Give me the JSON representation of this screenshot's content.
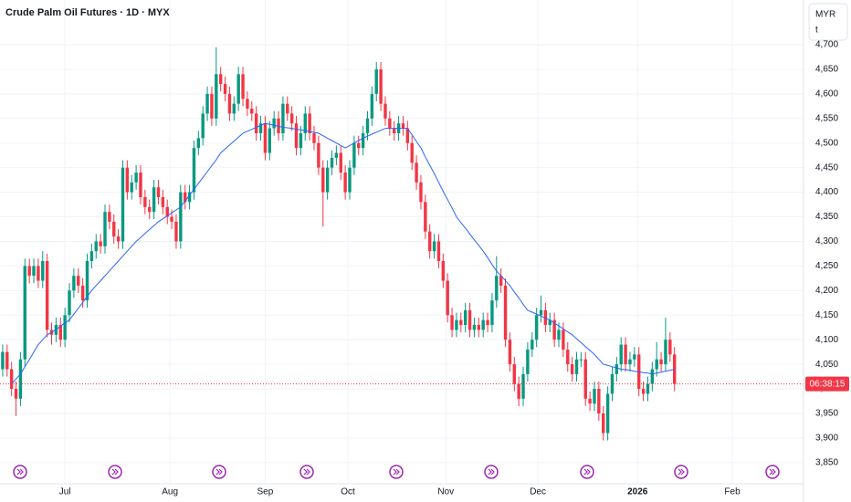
{
  "chart_data": {
    "type": "candlestick",
    "title": "Crude Palm Oil Futures · 1D · MYX",
    "currency": "MYR",
    "unit": "t",
    "countdown": "06:38:15",
    "up_color": "#089981",
    "down_color": "#f23645",
    "xlim": [
      -0.6,
      180
    ],
    "xticks": [
      {
        "value": 14,
        "label": "Jul"
      },
      {
        "value": 37.6,
        "label": "Aug"
      },
      {
        "value": 59,
        "label": "Sep"
      },
      {
        "value": 77.6,
        "label": "Oct"
      },
      {
        "value": 99.6,
        "label": "Nov"
      },
      {
        "value": 120.3,
        "label": "Dec"
      },
      {
        "value": 142.7,
        "label": "2026"
      },
      {
        "value": 164,
        "label": "Feb"
      }
    ],
    "ylim": [
      3807,
      4791
    ],
    "yticks": [
      {
        "value": 3850,
        "label": "3,850"
      },
      {
        "value": 3900,
        "label": "3,900"
      },
      {
        "value": 3950,
        "label": "3,950"
      },
      {
        "value": 4000,
        "label": "4,000"
      },
      {
        "value": 4050,
        "label": "4,050"
      },
      {
        "value": 4100,
        "label": "4,100"
      },
      {
        "value": 4150,
        "label": "4,150"
      },
      {
        "value": 4200,
        "label": "4,200"
      },
      {
        "value": 4250,
        "label": "4,250"
      },
      {
        "value": 4300,
        "label": "4,300"
      },
      {
        "value": 4350,
        "label": "4,350"
      },
      {
        "value": 4400,
        "label": "4,400"
      },
      {
        "value": 4450,
        "label": "4,450"
      },
      {
        "value": 4500,
        "label": "4,500"
      },
      {
        "value": 4550,
        "label": "4,550"
      },
      {
        "value": 4600,
        "label": "4,600"
      },
      {
        "value": 4650,
        "label": "4,650"
      },
      {
        "value": 4700,
        "label": "4,700"
      }
    ],
    "open": [
      4040,
      4075,
      4040,
      4000,
      3980,
      4060,
      4250,
      4230,
      4250,
      4220,
      4260,
      4120,
      4110,
      4130,
      4100,
      4150,
      4200,
      4230,
      4210,
      4180,
      4260,
      4280,
      4300,
      4290,
      4360,
      4340,
      4310,
      4300,
      4450,
      4400,
      4420,
      4440,
      4390,
      4370,
      4360,
      4410,
      4390,
      4370,
      4350,
      4340,
      4300,
      4400,
      4380,
      4400,
      4490,
      4510,
      4560,
      4600,
      4550,
      4640,
      4620,
      4600,
      4560,
      4580,
      4640,
      4590,
      4570,
      4560,
      4520,
      4540,
      4480,
      4530,
      4550,
      4520,
      4580,
      4560,
      4540,
      4490,
      4520,
      4560,
      4520,
      4500,
      4450,
      4400,
      4450,
      4470,
      4480,
      4440,
      4400,
      4450,
      4500,
      4490,
      4520,
      4550,
      4600,
      4650,
      4580,
      4550,
      4530,
      4520,
      4540,
      4530,
      4500,
      4460,
      4420,
      4380,
      4320,
      4280,
      4300,
      4260,
      4220,
      4150,
      4120,
      4140,
      4130,
      4160,
      4120,
      4130,
      4120,
      4140,
      4130,
      4180,
      4230,
      4210,
      4100,
      4050,
      4010,
      3980,
      4030,
      4080,
      4100,
      4150,
      4160,
      4130,
      4140,
      4100,
      4120,
      4080,
      4050,
      4030,
      4060,
      4060,
      3980,
      3970,
      4000,
      3950,
      3910,
      3990,
      4030,
      4050,
      4090,
      4050,
      4060,
      4070,
      4000,
      3990,
      4010,
      4040,
      4060,
      4050,
      4100,
      4070
    ],
    "high": [
      4090,
      4090,
      4055,
      4015,
      4075,
      4265,
      4265,
      4265,
      4265,
      4280,
      4275,
      4135,
      4145,
      4145,
      4165,
      4215,
      4245,
      4245,
      4225,
      4275,
      4295,
      4315,
      4315,
      4375,
      4375,
      4355,
      4325,
      4465,
      4465,
      4435,
      4455,
      4455,
      4405,
      4385,
      4425,
      4425,
      4405,
      4385,
      4365,
      4355,
      4415,
      4415,
      4415,
      4505,
      4525,
      4575,
      4615,
      4615,
      4695,
      4655,
      4635,
      4615,
      4595,
      4655,
      4655,
      4605,
      4585,
      4575,
      4555,
      4555,
      4545,
      4565,
      4565,
      4595,
      4595,
      4575,
      4555,
      4535,
      4575,
      4575,
      4535,
      4515,
      4465,
      4465,
      4485,
      4495,
      4495,
      4455,
      4465,
      4515,
      4515,
      4535,
      4565,
      4615,
      4665,
      4665,
      4595,
      4565,
      4545,
      4555,
      4555,
      4545,
      4515,
      4475,
      4435,
      4395,
      4335,
      4315,
      4315,
      4275,
      4235,
      4165,
      4155,
      4155,
      4175,
      4175,
      4145,
      4145,
      4155,
      4155,
      4195,
      4270,
      4245,
      4225,
      4115,
      4065,
      4025,
      4045,
      4095,
      4115,
      4165,
      4190,
      4175,
      4155,
      4155,
      4135,
      4135,
      4095,
      4065,
      4075,
      4075,
      4075,
      3995,
      4015,
      4015,
      3965,
      4005,
      4045,
      4065,
      4105,
      4105,
      4075,
      4085,
      4085,
      4015,
      4025,
      4055,
      4095,
      4075,
      4145,
      4115,
      4085
    ],
    "low": [
      4025,
      4025,
      3985,
      3945,
      3965,
      4045,
      4215,
      4215,
      4205,
      4205,
      4105,
      4090,
      4095,
      4085,
      4085,
      4135,
      4185,
      4195,
      4165,
      4165,
      4245,
      4265,
      4275,
      4275,
      4325,
      4295,
      4285,
      4285,
      4385,
      4385,
      4405,
      4375,
      4355,
      4345,
      4345,
      4375,
      4355,
      4335,
      4325,
      4285,
      4285,
      4365,
      4365,
      4385,
      4475,
      4495,
      4545,
      4535,
      4535,
      4605,
      4585,
      4545,
      4545,
      4565,
      4575,
      4555,
      4545,
      4505,
      4505,
      4465,
      4465,
      4515,
      4505,
      4505,
      4545,
      4525,
      4475,
      4475,
      4505,
      4505,
      4485,
      4435,
      4330,
      4385,
      4435,
      4455,
      4425,
      4385,
      4385,
      4435,
      4475,
      4475,
      4505,
      4535,
      4585,
      4565,
      4535,
      4515,
      4505,
      4505,
      4515,
      4485,
      4445,
      4405,
      4365,
      4305,
      4265,
      4265,
      4245,
      4205,
      4135,
      4105,
      4105,
      4115,
      4115,
      4105,
      4105,
      4105,
      4105,
      4115,
      4115,
      4165,
      4195,
      4085,
      4035,
      3995,
      3965,
      3965,
      4015,
      4065,
      4085,
      4135,
      4115,
      4115,
      4085,
      4085,
      4065,
      4035,
      4015,
      4015,
      4045,
      3965,
      3955,
      3955,
      3935,
      3895,
      3895,
      3975,
      4015,
      4035,
      4035,
      4035,
      4045,
      3985,
      3975,
      3975,
      3995,
      4025,
      4035,
      4035,
      4055,
      3995
    ],
    "close": [
      4075,
      4040,
      4000,
      3980,
      4060,
      4250,
      4230,
      4250,
      4220,
      4260,
      4120,
      4110,
      4130,
      4100,
      4150,
      4200,
      4230,
      4210,
      4180,
      4260,
      4280,
      4300,
      4290,
      4360,
      4340,
      4310,
      4300,
      4450,
      4400,
      4420,
      4440,
      4390,
      4370,
      4360,
      4410,
      4390,
      4370,
      4350,
      4340,
      4300,
      4400,
      4380,
      4400,
      4490,
      4510,
      4560,
      4600,
      4550,
      4640,
      4620,
      4600,
      4560,
      4580,
      4640,
      4590,
      4570,
      4560,
      4520,
      4540,
      4480,
      4530,
      4550,
      4520,
      4580,
      4560,
      4540,
      4490,
      4520,
      4560,
      4520,
      4500,
      4450,
      4400,
      4450,
      4470,
      4480,
      4440,
      4400,
      4450,
      4500,
      4490,
      4520,
      4550,
      4600,
      4650,
      4580,
      4550,
      4530,
      4520,
      4540,
      4530,
      4500,
      4460,
      4420,
      4380,
      4320,
      4280,
      4300,
      4260,
      4220,
      4150,
      4120,
      4140,
      4130,
      4160,
      4120,
      4130,
      4120,
      4140,
      4130,
      4180,
      4230,
      4210,
      4100,
      4050,
      4010,
      3980,
      4030,
      4080,
      4100,
      4150,
      4160,
      4130,
      4140,
      4100,
      4120,
      4080,
      4050,
      4030,
      4060,
      4060,
      3980,
      3970,
      4000,
      3950,
      3910,
      3990,
      4030,
      4050,
      4090,
      4050,
      4060,
      4070,
      4000,
      3990,
      4010,
      4040,
      4060,
      4050,
      4100,
      4070,
      4010
    ],
    "ma": {
      "color": "#2962ff",
      "values": [
        null,
        null,
        4010,
        4020,
        4030,
        4045,
        4060,
        4075,
        4090,
        4100,
        4110,
        4115,
        4120,
        4128,
        4134,
        4140,
        4152,
        4164,
        4176,
        4188,
        4200,
        4210,
        4220,
        4230,
        4240,
        4250,
        4260,
        4270,
        4280,
        4290,
        4300,
        4308,
        4316,
        4324,
        4332,
        4340,
        4346,
        4352,
        4358,
        4364,
        4370,
        4382,
        4394,
        4406,
        4418,
        4430,
        4442,
        4454,
        4466,
        4480,
        4488,
        4496,
        4504,
        4512,
        4520,
        4524,
        4528,
        4532,
        4536,
        4540,
        4538,
        4536,
        4534,
        4532,
        4531,
        4530,
        4528,
        4527,
        4525,
        4523,
        4522,
        4520,
        4515,
        4510,
        4505,
        4500,
        4495,
        4490,
        4495,
        4500,
        4505,
        4510,
        4514,
        4518,
        4522,
        4526,
        4530,
        4530,
        4530,
        4530,
        4530,
        4530,
        4517,
        4503,
        4490,
        4472,
        4455,
        4438,
        4420,
        4402,
        4385,
        4368,
        4350,
        4338,
        4327,
        4315,
        4303,
        4292,
        4280,
        4267,
        4253,
        4240,
        4230,
        4220,
        4210,
        4197,
        4185,
        4172,
        4160,
        4156,
        4152,
        4148,
        4144,
        4140,
        4134,
        4128,
        4122,
        4116,
        4110,
        4102,
        4094,
        4086,
        4078,
        4070,
        4060,
        4050,
        4048,
        4045,
        4043,
        4040,
        4039,
        4038,
        4036,
        4035,
        4033,
        4032,
        4030,
        4032,
        4034,
        4036,
        4038,
        4040
      ]
    }
  }
}
